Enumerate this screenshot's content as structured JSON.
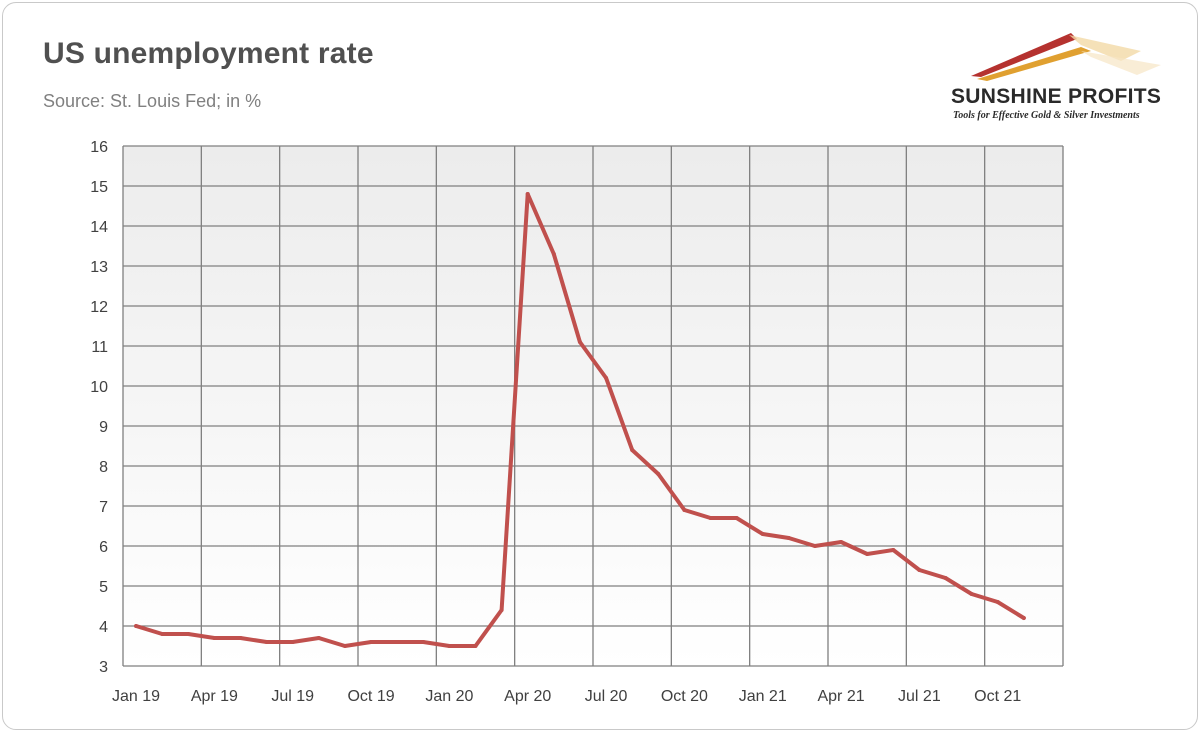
{
  "title": "US unemployment rate",
  "subtitle": "Source: St. Louis Fed; in %",
  "logo": {
    "name": "SUNSHINE PROFITS",
    "tagline": "Tools for Effective Gold & Silver Investments"
  },
  "colors": {
    "line": "#c0504d",
    "grid": "#7f7f7f",
    "plot_bg_top": "#ececec",
    "plot_bg_bottom": "#ffffff",
    "logo_red": "#b5322f",
    "logo_gold": "#e0a030"
  },
  "chart_data": {
    "type": "line",
    "title": "US unemployment rate",
    "subtitle": "Source: St. Louis Fed; in %",
    "xlabel": "",
    "ylabel": "",
    "ylim": [
      3,
      16
    ],
    "yticks": [
      "3",
      "4",
      "5",
      "6",
      "7",
      "8",
      "9",
      "10",
      "11",
      "12",
      "13",
      "14",
      "15",
      "16"
    ],
    "xtick_labels": [
      "Jan 19",
      "Apr 19",
      "Jul 19",
      "Oct 19",
      "Jan 20",
      "Apr 20",
      "Jul 20",
      "Oct 20",
      "Jan 21",
      "Apr 21",
      "Jul 21",
      "Oct 21"
    ],
    "grid": true,
    "legend": "none",
    "x": [
      "Jan 19",
      "Feb 19",
      "Mar 19",
      "Apr 19",
      "May 19",
      "Jun 19",
      "Jul 19",
      "Aug 19",
      "Sep 19",
      "Oct 19",
      "Nov 19",
      "Dec 19",
      "Jan 20",
      "Feb 20",
      "Mar 20",
      "Apr 20",
      "May 20",
      "Jun 20",
      "Jul 20",
      "Aug 20",
      "Sep 20",
      "Oct 20",
      "Nov 20",
      "Dec 20",
      "Jan 21",
      "Feb 21",
      "Mar 21",
      "Apr 21",
      "May 21",
      "Jun 21",
      "Jul 21",
      "Aug 21",
      "Sep 21",
      "Oct 21",
      "Nov 21"
    ],
    "values": [
      4.0,
      3.8,
      3.8,
      3.7,
      3.7,
      3.6,
      3.6,
      3.7,
      3.5,
      3.6,
      3.6,
      3.6,
      3.5,
      3.5,
      4.4,
      14.8,
      13.3,
      11.1,
      10.2,
      8.4,
      7.8,
      6.9,
      6.7,
      6.7,
      6.3,
      6.2,
      6.0,
      6.1,
      5.8,
      5.9,
      5.4,
      5.2,
      4.8,
      4.6,
      4.2
    ]
  }
}
